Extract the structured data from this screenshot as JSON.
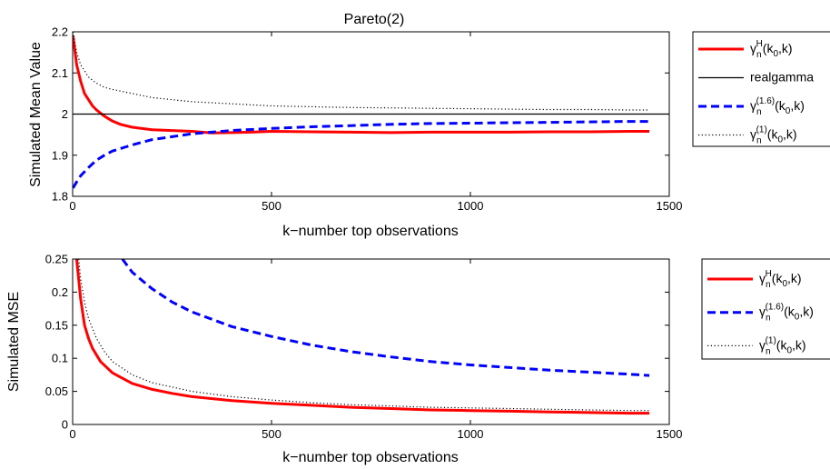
{
  "chart_data": [
    {
      "type": "line",
      "title": "Pareto(2)",
      "xlabel": "k−number top observations",
      "ylabel": "Simulated Mean Value",
      "xlim": [
        0,
        1500
      ],
      "ylim": [
        1.8,
        2.2
      ],
      "xticks": [
        "0",
        "500",
        "1000",
        "1500"
      ],
      "yticks": [
        "1.8",
        "1.9",
        "2",
        "2.1",
        "2.2"
      ],
      "grid": false,
      "legend_position": "outside-right",
      "series": [
        {
          "name": "gamma_n^H(k_0,k)",
          "label_base": "γ",
          "label_sub": "n",
          "label_sup": "H",
          "label_tail": "(k",
          "label_tail_sub": "0",
          "label_end": ",k)",
          "color": "#ff0000",
          "style": "solid",
          "x": [
            1,
            10,
            20,
            30,
            40,
            50,
            60,
            80,
            100,
            120,
            150,
            200,
            250,
            300,
            350,
            400,
            450,
            500,
            600,
            700,
            800,
            900,
            1000,
            1100,
            1200,
            1300,
            1400,
            1450
          ],
          "y": [
            2.19,
            2.12,
            2.08,
            2.05,
            2.035,
            2.02,
            2.01,
            1.995,
            1.983,
            1.975,
            1.968,
            1.962,
            1.96,
            1.958,
            1.954,
            1.955,
            1.956,
            1.958,
            1.957,
            1.956,
            1.955,
            1.956,
            1.956,
            1.956,
            1.957,
            1.957,
            1.958,
            1.958
          ]
        },
        {
          "name": "realgamma",
          "label_base": "realgamma",
          "color": "#000000",
          "style": "solid",
          "x": [
            0,
            1500
          ],
          "y": [
            2,
            2
          ]
        },
        {
          "name": "gamma_n^(1.6)(k_0,k)",
          "label_base": "γ",
          "label_sub": "n",
          "label_sup": "(1.6)",
          "label_tail": "(k",
          "label_tail_sub": "0",
          "label_end": ",k)",
          "color": "#0000ff",
          "style": "dashed",
          "x": [
            1,
            10,
            20,
            40,
            60,
            80,
            100,
            150,
            200,
            250,
            300,
            400,
            500,
            600,
            700,
            800,
            900,
            1000,
            1100,
            1200,
            1300,
            1400,
            1450
          ],
          "y": [
            1.82,
            1.835,
            1.85,
            1.87,
            1.888,
            1.9,
            1.91,
            1.925,
            1.938,
            1.945,
            1.952,
            1.96,
            1.965,
            1.969,
            1.972,
            1.975,
            1.977,
            1.978,
            1.979,
            1.98,
            1.981,
            1.982,
            1.982
          ]
        },
        {
          "name": "gamma_n^(1)(k_0,k)",
          "label_base": "γ",
          "label_sub": "n",
          "label_sup": "(1)",
          "label_tail": "(k",
          "label_tail_sub": "0",
          "label_end": ",k)",
          "color": "#000000",
          "style": "dotted",
          "x": [
            1,
            10,
            20,
            40,
            60,
            80,
            100,
            150,
            200,
            300,
            400,
            500,
            600,
            700,
            800,
            900,
            1000,
            1100,
            1200,
            1300,
            1400,
            1450
          ],
          "y": [
            2.2,
            2.15,
            2.12,
            2.09,
            2.075,
            2.065,
            2.06,
            2.05,
            2.04,
            2.03,
            2.025,
            2.02,
            2.018,
            2.016,
            2.015,
            2.014,
            2.013,
            2.012,
            2.011,
            2.011,
            2.01,
            2.01
          ]
        }
      ]
    },
    {
      "type": "line",
      "title": "",
      "xlabel": "k−number top observations",
      "ylabel": "Simulated MSE",
      "xlim": [
        0,
        1500
      ],
      "ylim": [
        0,
        0.25
      ],
      "xticks": [
        "0",
        "500",
        "1000",
        "1500"
      ],
      "yticks": [
        "0",
        "0.05",
        "0.1",
        "0.15",
        "0.2",
        "0.25"
      ],
      "grid": false,
      "legend_position": "outside-right",
      "series": [
        {
          "name": "gamma_n^H(k_0,k)",
          "label_base": "γ",
          "label_sub": "n",
          "label_sup": "H",
          "label_tail": "(k",
          "label_tail_sub": "0",
          "label_end": ",k)",
          "color": "#ff0000",
          "style": "solid",
          "x": [
            10,
            15,
            20,
            30,
            40,
            50,
            70,
            100,
            150,
            200,
            250,
            300,
            400,
            500,
            600,
            700,
            800,
            900,
            1000,
            1100,
            1200,
            1300,
            1400,
            1450
          ],
          "y": [
            0.25,
            0.22,
            0.19,
            0.15,
            0.13,
            0.115,
            0.095,
            0.078,
            0.062,
            0.053,
            0.047,
            0.042,
            0.036,
            0.032,
            0.029,
            0.026,
            0.024,
            0.022,
            0.021,
            0.02,
            0.019,
            0.018,
            0.017,
            0.017
          ]
        },
        {
          "name": "gamma_n^(1.6)(k_0,k)",
          "label_base": "γ",
          "label_sub": "n",
          "label_sup": "(1.6)",
          "label_tail": "(k",
          "label_tail_sub": "0",
          "label_end": ",k)",
          "color": "#0000ff",
          "style": "dashed",
          "x": [
            125,
            150,
            200,
            250,
            300,
            400,
            500,
            600,
            700,
            800,
            900,
            1000,
            1100,
            1200,
            1300,
            1400,
            1450
          ],
          "y": [
            0.25,
            0.23,
            0.205,
            0.185,
            0.17,
            0.148,
            0.133,
            0.12,
            0.11,
            0.102,
            0.095,
            0.09,
            0.086,
            0.082,
            0.079,
            0.076,
            0.074
          ]
        },
        {
          "name": "gamma_n^(1)(k_0,k)",
          "label_base": "γ",
          "label_sub": "n",
          "label_sup": "(1)",
          "label_tail": "(k",
          "label_tail_sub": "0",
          "label_end": ",k)",
          "color": "#000000",
          "style": "dotted",
          "x": [
            15,
            20,
            30,
            40,
            60,
            80,
            100,
            150,
            200,
            300,
            400,
            500,
            600,
            700,
            800,
            900,
            1000,
            1100,
            1200,
            1300,
            1400,
            1450
          ],
          "y": [
            0.25,
            0.22,
            0.185,
            0.16,
            0.13,
            0.11,
            0.095,
            0.075,
            0.063,
            0.05,
            0.042,
            0.037,
            0.033,
            0.03,
            0.028,
            0.026,
            0.025,
            0.024,
            0.023,
            0.022,
            0.021,
            0.021
          ]
        }
      ]
    }
  ]
}
